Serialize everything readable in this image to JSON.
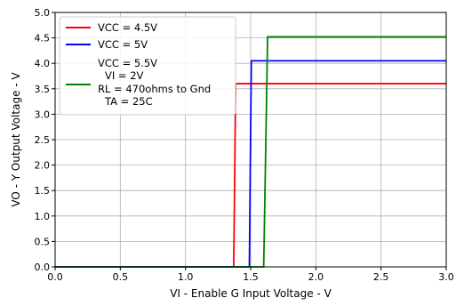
{
  "chart_data": {
    "type": "line",
    "xlabel": "VI - Enable G Input Voltage - V",
    "ylabel": "VO - Y Output Voltage - V",
    "xlim": [
      0.0,
      3.0
    ],
    "ylim": [
      0.0,
      5.0
    ],
    "x_ticks": [
      "0.0",
      "0.5",
      "1.0",
      "1.5",
      "2.0",
      "2.5",
      "3.0"
    ],
    "y_ticks": [
      "0.0",
      "0.5",
      "1.0",
      "1.5",
      "2.0",
      "2.5",
      "3.0",
      "3.5",
      "4.0",
      "4.5",
      "5.0"
    ],
    "grid": true,
    "legend_position": "top-left",
    "series": [
      {
        "name": "VCC = 4.5V",
        "color": "#ff0000",
        "x": [
          0.0,
          1.37,
          1.385,
          3.0
        ],
        "y": [
          0.0,
          0.0,
          3.6,
          3.6
        ]
      },
      {
        "name": "VCC = 5V",
        "color": "#0000ff",
        "x": [
          0.0,
          1.49,
          1.505,
          3.0
        ],
        "y": [
          0.0,
          0.0,
          4.05,
          4.05
        ]
      },
      {
        "name": "VCC = 5.5V",
        "color": "#008000",
        "x": [
          0.0,
          1.6,
          1.63,
          3.0
        ],
        "y": [
          0.0,
          0.0,
          4.52,
          4.52
        ]
      }
    ],
    "legend_note": [
      "VI = 2V",
      "RL = 470ohms to Gnd",
      "TA = 25C"
    ]
  }
}
